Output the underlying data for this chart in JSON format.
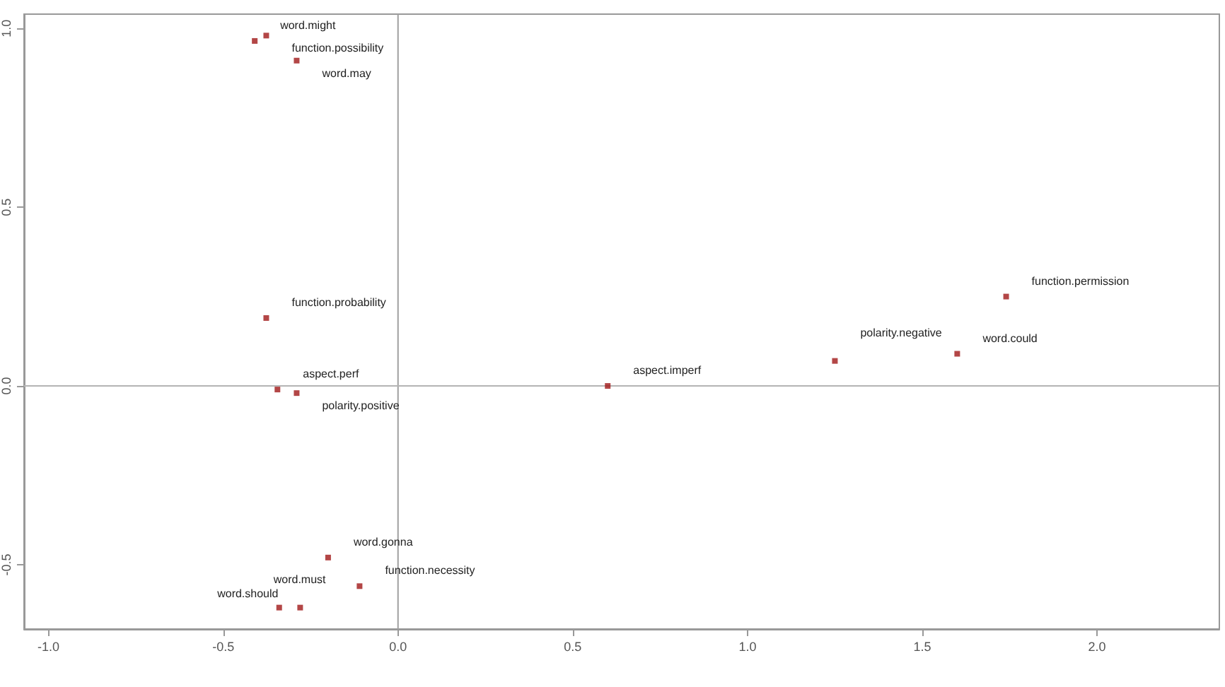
{
  "chart_data": {
    "type": "scatter",
    "x": [
      -0.377,
      -0.41,
      -0.29,
      -0.377,
      -0.345,
      -0.29,
      0.6,
      1.25,
      1.6,
      1.74,
      -0.2,
      -0.11,
      -0.34,
      -0.28
    ],
    "series": [
      {
        "color": "#a01818",
        "values": [
          0.98,
          0.965,
          0.91,
          0.19,
          -0.01,
          -0.02,
          0.0,
          0.07,
          0.09,
          0.25,
          -0.48,
          -0.56,
          -0.62,
          -0.62
        ]
      }
    ],
    "xlim": [
      -1.07,
      2.35
    ],
    "xticks": [
      {
        "value": -1,
        "label": "-1.0"
      },
      -0.5,
      {
        "value": 0,
        "label": "0.0"
      },
      0.5,
      {
        "value": 1,
        "label": "1.0"
      },
      1.5,
      {
        "value": 2,
        "label": "2.0"
      }
    ],
    "ylim": [
      -0.68,
      1.04
    ],
    "yticks": [
      -0.5,
      {
        "value": 0,
        "label": "0.0"
      },
      0.5,
      {
        "value": 1,
        "label": "1.0"
      }
    ],
    "marker": "square",
    "grid": false,
    "ref_lines": [
      {
        "axis": "x",
        "value": 0,
        "color": "#a0a0a0"
      },
      {
        "axis": "y",
        "value": 0,
        "color": "#b4b4b4"
      }
    ],
    "annotations": [
      {
        "text": "function.possibility",
        "x": -0.377,
        "y": 0.98
      },
      {
        "text": "word.might",
        "x": -0.41,
        "y": 0.965
      },
      {
        "text": "word.may",
        "x": -0.29,
        "y": 0.91
      },
      {
        "text": "function.probability",
        "x": -0.377,
        "y": 0.19
      },
      {
        "text": "aspect.perf",
        "x": -0.345,
        "y": -0.01
      },
      {
        "text": "polarity.positive",
        "x": -0.29,
        "y": -0.02
      },
      {
        "text": "aspect.imperf",
        "x": 0.6,
        "y": 0.0
      },
      {
        "text": "polarity.negative",
        "x": 1.25,
        "y": 0.07
      },
      {
        "text": "word.could",
        "x": 1.6,
        "y": 0.09
      },
      {
        "text": "function.permission",
        "x": 1.74,
        "y": 0.25
      },
      {
        "text": "word.gonna",
        "x": -0.2,
        "y": -0.48
      },
      {
        "text": "function.necessity",
        "x": -0.11,
        "y": -0.56
      },
      {
        "text": "word.should",
        "x": -0.28,
        "y": -0.62
      },
      {
        "text": "word.must",
        "x": -0.34,
        "y": -0.62
      }
    ]
  }
}
